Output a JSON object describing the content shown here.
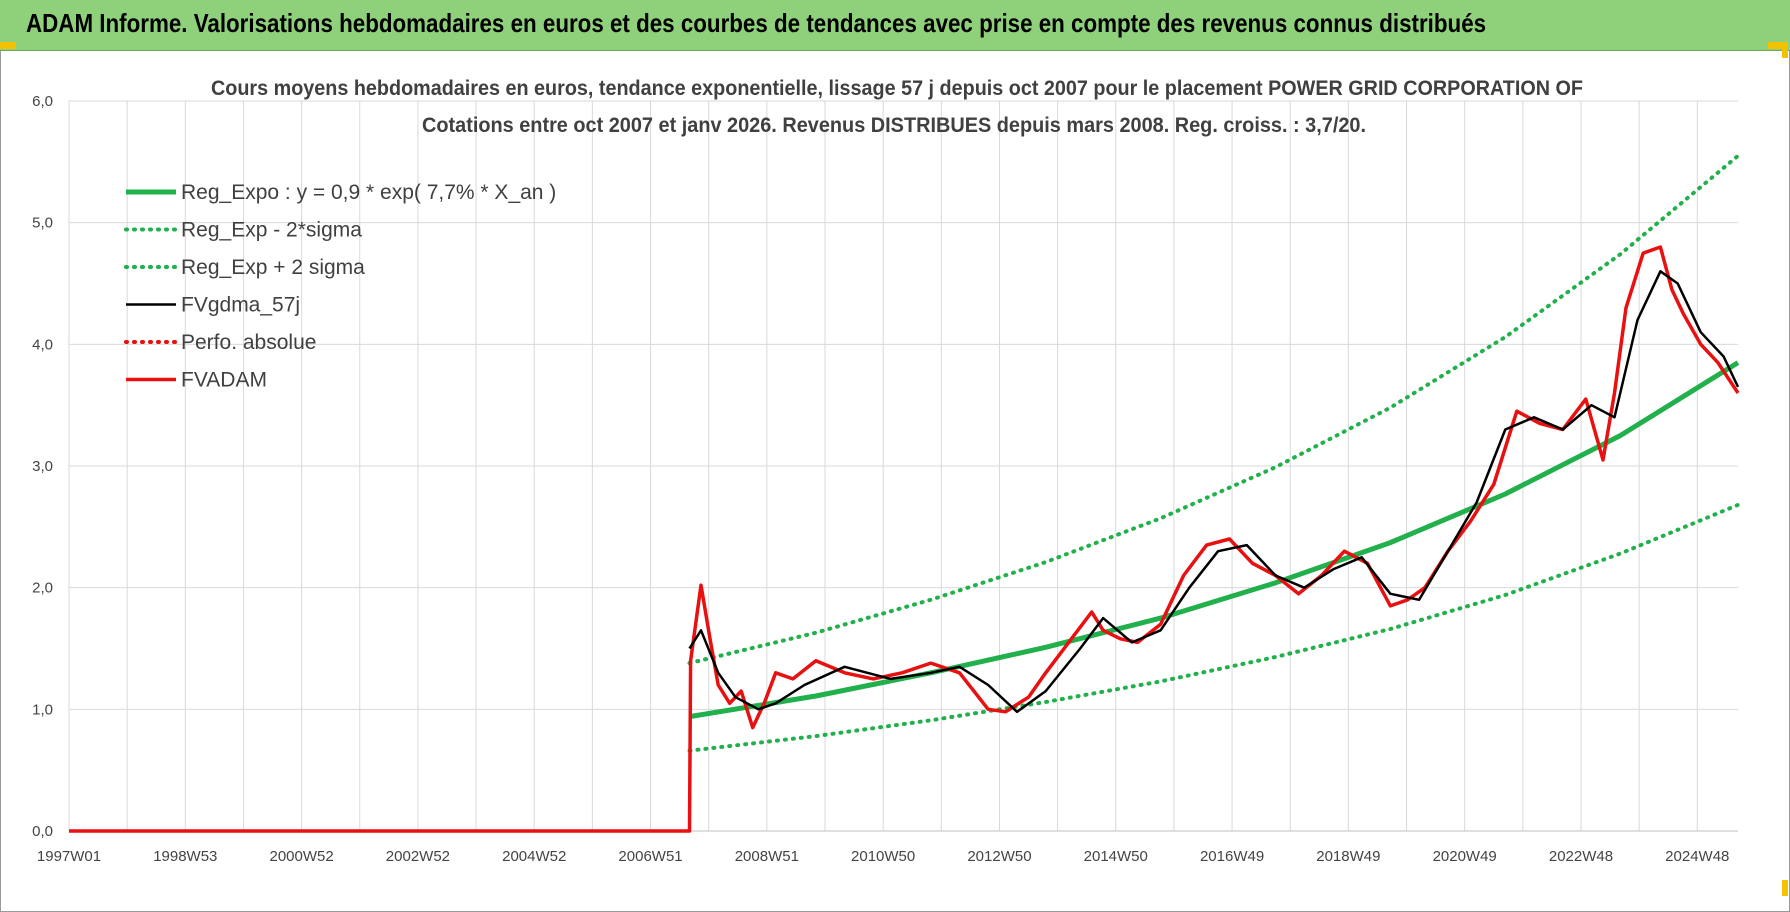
{
  "banner": {
    "title": "ADAM Informe. Valorisations hebdomadaires en euros et des courbes de tendances avec prise en compte des revenus connus distribués"
  },
  "colors": {
    "banner_bg": "#8fd17a",
    "reg_expo": "#22b04c",
    "bands": "#22b04c",
    "fvgdma": "#000000",
    "perfo": "#e81010",
    "fvadam": "#e81010",
    "grid": "#d9d9d9"
  },
  "chart_data": {
    "type": "line",
    "title_line1": "Cours moyens hebdomadaires en euros, tendance exponentielle, lissage 57 j depuis oct 2007 pour le placement POWER GRID CORPORATION OF",
    "title_line2": "Cotations entre oct 2007 et janv 2026. Revenus DISTRIBUES depuis mars 2008. Reg. croiss. : 3,7/20.",
    "x_tick_labels": [
      "1997W01",
      "1998W53",
      "2000W52",
      "2002W52",
      "2004W52",
      "2006W51",
      "2008W51",
      "2010W50",
      "2012W50",
      "2014W50",
      "2016W49",
      "2018W49",
      "2020W49",
      "2022W48",
      "2024W48"
    ],
    "xlim": [
      1997.0,
      2026.05
    ],
    "ylim": [
      0,
      6
    ],
    "y_tick_labels": [
      "0,0",
      "1,0",
      "2,0",
      "3,0",
      "4,0",
      "5,0",
      "6,0"
    ],
    "grid": true,
    "legend_position": "top-left",
    "series": [
      {
        "name": "Reg_Expo : y = 0,9 * exp( 7,7% *  X_an )",
        "style": "solid-thick",
        "color": "#22b04c",
        "x": [
          2007.8,
          2010.0,
          2012.0,
          2014.0,
          2016.0,
          2018.0,
          2020.0,
          2022.0,
          2024.0,
          2026.05
        ],
        "y": [
          0.94,
          1.11,
          1.3,
          1.51,
          1.75,
          2.04,
          2.37,
          2.77,
          3.25,
          3.85
        ]
      },
      {
        "name": "Reg_Exp - 2*sigma",
        "style": "dotted",
        "color": "#22b04c",
        "x": [
          2007.8,
          2010.0,
          2012.0,
          2014.0,
          2016.0,
          2018.0,
          2020.0,
          2022.0,
          2024.0,
          2026.05
        ],
        "y": [
          0.66,
          0.78,
          0.91,
          1.06,
          1.23,
          1.43,
          1.66,
          1.94,
          2.28,
          2.68
        ]
      },
      {
        "name": "Reg_Exp + 2 sigma",
        "style": "dotted",
        "color": "#22b04c",
        "x": [
          2007.8,
          2010.0,
          2012.0,
          2014.0,
          2016.0,
          2018.0,
          2020.0,
          2022.0,
          2024.0,
          2026.05
        ],
        "y": [
          1.38,
          1.63,
          1.9,
          2.21,
          2.57,
          2.99,
          3.48,
          4.06,
          4.74,
          5.55
        ]
      },
      {
        "name": "FVgdma_57j",
        "style": "solid",
        "color": "#000000",
        "x": [
          2007.8,
          2008.0,
          2008.3,
          2008.6,
          2009.0,
          2009.3,
          2009.8,
          2010.5,
          2011.3,
          2012.0,
          2012.5,
          2013.0,
          2013.5,
          2014.0,
          2014.6,
          2015.0,
          2015.5,
          2016.0,
          2016.5,
          2017.0,
          2017.5,
          2018.0,
          2018.5,
          2019.0,
          2019.5,
          2020.0,
          2020.5,
          2021.0,
          2021.5,
          2022.0,
          2022.5,
          2023.0,
          2023.5,
          2023.9,
          2024.3,
          2024.7,
          2025.0,
          2025.4,
          2025.8,
          2026.05
        ],
        "y": [
          1.5,
          1.65,
          1.3,
          1.1,
          1.0,
          1.05,
          1.2,
          1.35,
          1.25,
          1.3,
          1.35,
          1.2,
          0.98,
          1.15,
          1.5,
          1.75,
          1.55,
          1.65,
          2.0,
          2.3,
          2.35,
          2.1,
          2.0,
          2.15,
          2.25,
          1.95,
          1.9,
          2.3,
          2.7,
          3.3,
          3.4,
          3.3,
          3.5,
          3.4,
          4.2,
          4.6,
          4.5,
          4.1,
          3.9,
          3.65
        ]
      },
      {
        "name": "Perfo. absolue",
        "style": "dotted",
        "color": "#e81010",
        "x": [],
        "y": []
      },
      {
        "name": "FVADAM",
        "style": "solid-thick",
        "color": "#e81010",
        "x": [
          1997.0,
          2007.8,
          2007.82,
          2008.0,
          2008.15,
          2008.3,
          2008.5,
          2008.7,
          2008.9,
          2009.1,
          2009.3,
          2009.6,
          2010.0,
          2010.5,
          2011.0,
          2011.5,
          2012.0,
          2012.5,
          2013.0,
          2013.3,
          2013.7,
          2014.0,
          2014.4,
          2014.8,
          2015.0,
          2015.3,
          2015.6,
          2016.0,
          2016.4,
          2016.8,
          2017.2,
          2017.6,
          2018.0,
          2018.4,
          2018.8,
          2019.2,
          2019.6,
          2020.0,
          2020.3,
          2020.6,
          2021.0,
          2021.4,
          2021.8,
          2022.2,
          2022.6,
          2023.0,
          2023.4,
          2023.7,
          2023.9,
          2024.1,
          2024.4,
          2024.7,
          2024.9,
          2025.1,
          2025.4,
          2025.7,
          2026.05
        ],
        "y": [
          0.0,
          0.0,
          1.4,
          2.02,
          1.6,
          1.2,
          1.05,
          1.15,
          0.85,
          1.05,
          1.3,
          1.25,
          1.4,
          1.3,
          1.25,
          1.3,
          1.38,
          1.3,
          1.0,
          0.98,
          1.1,
          1.3,
          1.55,
          1.8,
          1.65,
          1.58,
          1.55,
          1.7,
          2.1,
          2.35,
          2.4,
          2.2,
          2.1,
          1.95,
          2.1,
          2.3,
          2.2,
          1.85,
          1.9,
          2.0,
          2.3,
          2.55,
          2.85,
          3.45,
          3.35,
          3.3,
          3.55,
          3.05,
          3.6,
          4.3,
          4.75,
          4.8,
          4.45,
          4.25,
          4.0,
          3.85,
          3.6
        ]
      }
    ]
  }
}
